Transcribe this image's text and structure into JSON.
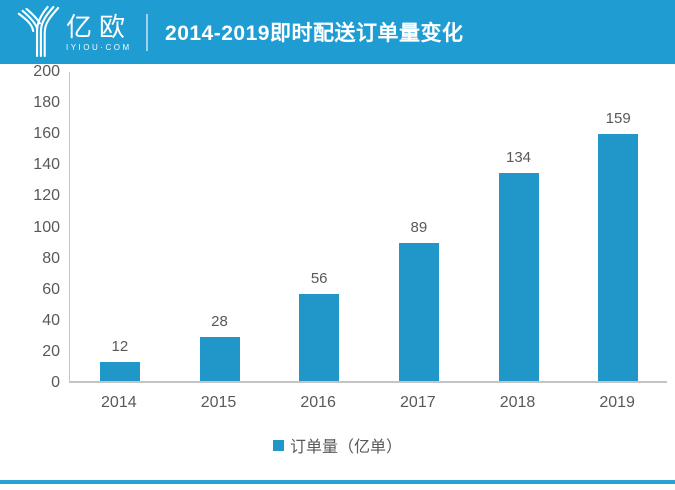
{
  "header": {
    "brand_name": "亿欧",
    "brand_domain": "IYIOU·COM",
    "title": "2014-2019即时配送订单量变化"
  },
  "legend": {
    "label": "订单量（亿单）"
  },
  "colors": {
    "header_bg": "#1F9DD3",
    "bar": "#2196C9",
    "axis_line": "#C4C4C4",
    "label_text": "#595959",
    "accent_line": "#2B9FD6"
  },
  "chart_data": {
    "type": "bar",
    "title": "2014-2019即时配送订单量变化",
    "categories": [
      "2014",
      "2015",
      "2016",
      "2017",
      "2018",
      "2019"
    ],
    "values": [
      12,
      28,
      56,
      89,
      134,
      159
    ],
    "series_name": "订单量（亿单）",
    "xlabel": "",
    "ylabel": "",
    "ylim": [
      0,
      200
    ],
    "yticks": [
      200,
      180,
      160,
      140,
      120,
      100,
      80,
      60,
      40,
      20,
      0
    ],
    "grid": false,
    "bar_labels": true,
    "legend_position": "bottom"
  }
}
